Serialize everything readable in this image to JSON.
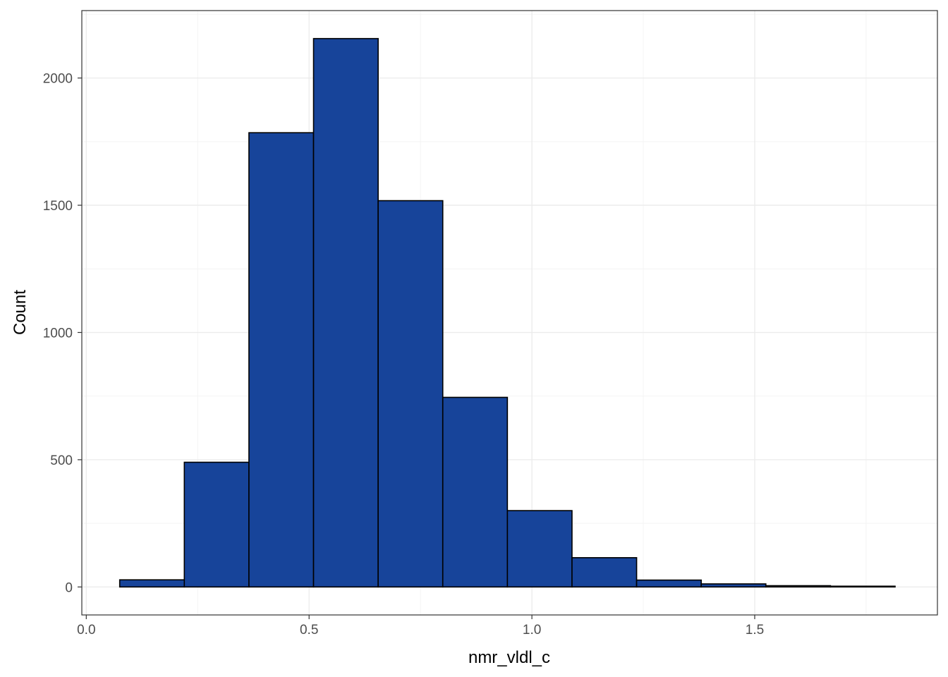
{
  "chart_data": {
    "type": "bar",
    "subtype": "histogram",
    "xlabel": "nmr_vldl_c",
    "ylabel": "Count",
    "xlim": [
      -0.01,
      1.91
    ],
    "ylim": [
      -110,
      2265
    ],
    "x_ticks": [
      0.0,
      0.5,
      1.0,
      1.5
    ],
    "x_tick_labels": [
      "0.0",
      "0.5",
      "1.0",
      "1.5"
    ],
    "y_ticks": [
      0,
      500,
      1000,
      1500,
      2000
    ],
    "y_tick_labels": [
      "0",
      "500",
      "1000",
      "1500",
      "2000"
    ],
    "grid": true,
    "bin_width": 0.145,
    "bins": [
      {
        "x0": 0.075,
        "x1": 0.22,
        "count": 28
      },
      {
        "x0": 0.22,
        "x1": 0.365,
        "count": 490
      },
      {
        "x0": 0.365,
        "x1": 0.51,
        "count": 1785
      },
      {
        "x0": 0.51,
        "x1": 0.655,
        "count": 2155
      },
      {
        "x0": 0.655,
        "x1": 0.8,
        "count": 1518
      },
      {
        "x0": 0.8,
        "x1": 0.945,
        "count": 745
      },
      {
        "x0": 0.945,
        "x1": 1.09,
        "count": 300
      },
      {
        "x0": 1.09,
        "x1": 1.235,
        "count": 115
      },
      {
        "x0": 1.235,
        "x1": 1.38,
        "count": 27
      },
      {
        "x0": 1.38,
        "x1": 1.525,
        "count": 12
      },
      {
        "x0": 1.525,
        "x1": 1.67,
        "count": 5
      },
      {
        "x0": 1.67,
        "x1": 1.815,
        "count": 3
      }
    ],
    "colors": {
      "bar_fill": "#17449a",
      "bar_stroke": "#000000",
      "grid_major": "#ebebeb",
      "grid_minor": "#f4f4f4",
      "panel_border": "#333333"
    }
  }
}
